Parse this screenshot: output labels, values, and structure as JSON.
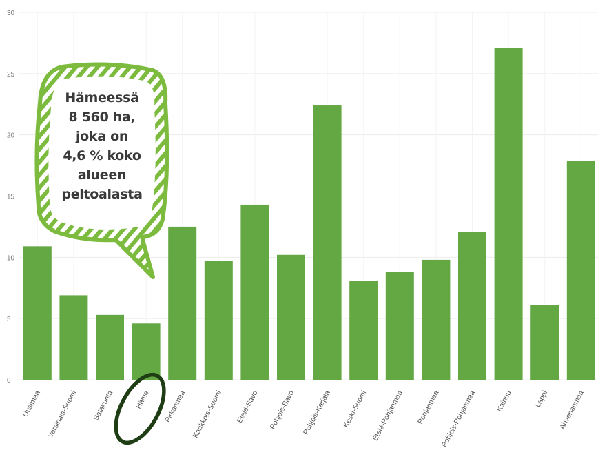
{
  "chart_data": {
    "type": "bar",
    "title": "",
    "xlabel": "",
    "ylabel": "",
    "ylim": [
      0,
      30
    ],
    "yticks": [
      0,
      5,
      10,
      15,
      20,
      25,
      30
    ],
    "grid": true,
    "categories": [
      "Uusimaa",
      "Varsinais-Suomi",
      "Satakunta",
      "Häme",
      "Pirkanmaa",
      "Kaakkois-Suomi",
      "Etelä-Savo",
      "Pohjois-Savo",
      "Pohjois-Karjala",
      "Keski-Suomi",
      "Etelä-Pohjanmaa",
      "Pohjanmaa",
      "Pohjois-Pohjanmaa",
      "Kainuu",
      "Lappi",
      "Ahvenanmaa"
    ],
    "values": [
      10.9,
      6.9,
      5.3,
      4.6,
      12.5,
      9.7,
      14.3,
      10.2,
      22.4,
      8.1,
      8.8,
      9.8,
      12.1,
      27.1,
      6.1,
      17.9
    ],
    "bar_color": "#64a844",
    "highlight": "Häme",
    "highlight_color": "#1f3d14",
    "callout": {
      "lines": [
        "Hämeessä",
        "8 560 ha,",
        "joka on",
        "4,6 % koko",
        "alueen",
        "peltoalasta"
      ],
      "border_color": "#7cbb3e"
    }
  }
}
